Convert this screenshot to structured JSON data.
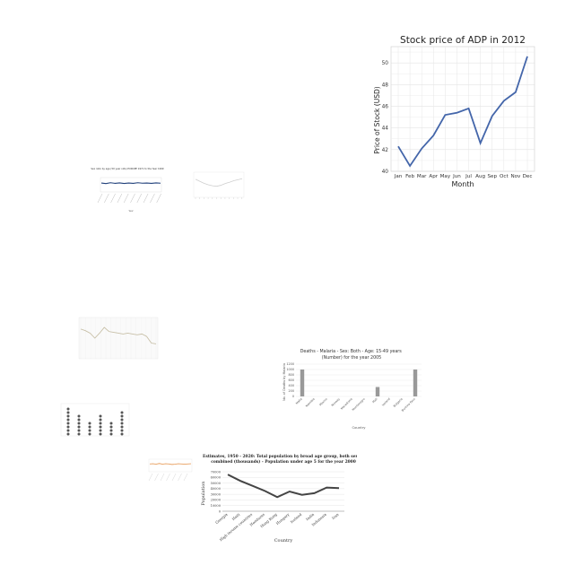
{
  "chart_data": [
    {
      "id": "adp",
      "type": "line",
      "title": "Stock price of ADP in 2012",
      "xlabel": "Month",
      "ylabel": "Price of Stock (USD)",
      "categories": [
        "Jan",
        "Feb",
        "Mar",
        "Apr",
        "May",
        "Jun",
        "Jul",
        "Aug",
        "Sep",
        "Oct",
        "Nov",
        "Dec"
      ],
      "values": [
        42.3,
        40.5,
        42.1,
        43.3,
        45.2,
        45.4,
        45.8,
        42.6,
        45.1,
        46.5,
        47.3,
        50.6
      ],
      "ylim": [
        40,
        51.5
      ],
      "yticks": [
        "40",
        "42",
        "44",
        "46",
        "48",
        "50"
      ],
      "grid": true,
      "color": "#4466aa"
    },
    {
      "id": "sex-ratio",
      "type": "line",
      "title": "Sex ratio by age (50 year olds) EUROPE 1971 to the Year 1999",
      "xlabel": "Year",
      "ylabel": "",
      "values": [
        0.62,
        0.58,
        0.64,
        0.6,
        0.63,
        0.59,
        0.62,
        0.6,
        0.64,
        0.61,
        0.62,
        0.6,
        0.63,
        0.61
      ],
      "ylim": [
        0,
        1
      ],
      "color": "#1f3f7a"
    },
    {
      "id": "pop-small",
      "type": "line",
      "title": "",
      "values": [
        0.72,
        0.64,
        0.56,
        0.5,
        0.46,
        0.44,
        0.48,
        0.55,
        0.6,
        0.66,
        0.7,
        0.74
      ],
      "ylim": [
        0,
        1
      ],
      "color": "#cfcfcf"
    },
    {
      "id": "trend",
      "type": "line",
      "title": "",
      "values": [
        0.72,
        0.68,
        0.62,
        0.5,
        0.62,
        0.76,
        0.66,
        0.64,
        0.62,
        0.6,
        0.62,
        0.6,
        0.58,
        0.6,
        0.54,
        0.38,
        0.36
      ],
      "ylim": [
        0,
        1
      ],
      "color": "#c8c0a8"
    },
    {
      "id": "dots",
      "type": "scatter",
      "title": "",
      "values": [
        8,
        6,
        4,
        6,
        4,
        7
      ],
      "ylim": [
        0,
        9
      ],
      "color": "#555555"
    },
    {
      "id": "malaria",
      "type": "bar",
      "title": "Deaths - Malaria - Sex: Both - Age: 15-49 years (Number) for the year 2005",
      "xlabel": "Country",
      "ylabel": "No. of Deaths by Malaria",
      "categories": [
        "Malta",
        "Namibia",
        "Mexico",
        "Norway",
        "Macedonia",
        "Montenegro",
        "Mali",
        "Iceland",
        "Bulgaria",
        "Burkina Faso"
      ],
      "values": [
        1000,
        0,
        0,
        0,
        0,
        0,
        350,
        0,
        0,
        1000
      ],
      "ylim": [
        0,
        1200
      ],
      "yticks": [
        "0",
        "200",
        "400",
        "600",
        "800",
        "1000",
        "1200"
      ],
      "color": "#999999"
    },
    {
      "id": "orange",
      "type": "line",
      "title": "",
      "values": [
        0.62,
        0.64,
        0.6,
        0.66,
        0.6,
        0.64,
        0.62,
        0.58,
        0.6,
        0.64,
        0.62,
        0.6,
        0.62,
        0.64
      ],
      "ylim": [
        0,
        1
      ],
      "color": "#e8a060"
    },
    {
      "id": "estimates",
      "type": "line",
      "title": "Estimates, 1950 - 2020: Total population by broad age group, both sexes combined (thousands) - Population under age 5 for the year 2000",
      "xlabel": "Country",
      "ylabel": "Population",
      "categories": [
        "Georgia",
        "Haiti",
        "High income countries",
        "Honduras",
        "Hong Kong",
        "Hungary",
        "Iceland",
        "India",
        "Indonesia",
        "Iran"
      ],
      "values": [
        65000,
        54000,
        45000,
        36000,
        25000,
        35000,
        29000,
        32000,
        42000,
        41000
      ],
      "ylim": [
        0,
        70000
      ],
      "yticks": [
        "0",
        "10000",
        "20000",
        "30000",
        "40000",
        "50000",
        "60000",
        "70000"
      ],
      "color": "#444444"
    }
  ]
}
